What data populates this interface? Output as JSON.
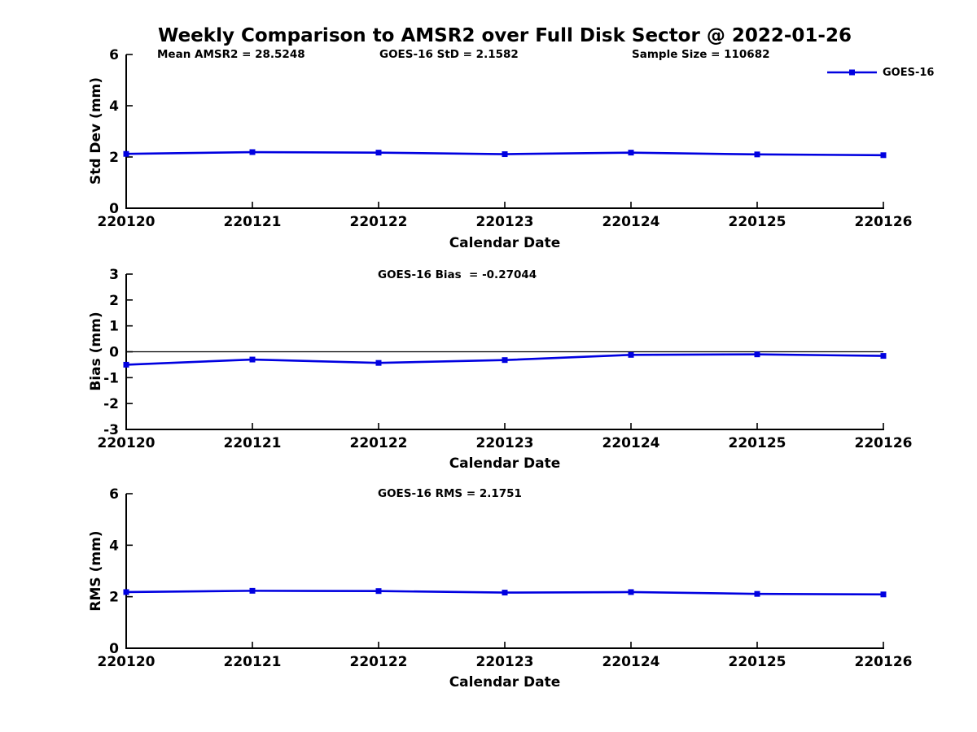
{
  "title": "Weekly Comparison to AMSR2 over Full Disk Sector @ 2022-01-26",
  "legend": {
    "label": "GOES-16",
    "position": "top-right"
  },
  "colors": {
    "line": "#0000e0",
    "axis": "#000000",
    "background": "#ffffff"
  },
  "chart_data": [
    {
      "type": "line",
      "panel": "std-dev",
      "annotations": [
        "Mean AMSR2 = 28.5248",
        "GOES-16 StD = 2.1582",
        "Sample Size = 110682"
      ],
      "ylabel": "Std Dev (mm)",
      "xlabel": "Calendar Date",
      "x": [
        "220120",
        "220121",
        "220122",
        "220123",
        "220124",
        "220125",
        "220126"
      ],
      "series": [
        {
          "name": "GOES-16",
          "values": [
            2.12,
            2.19,
            2.17,
            2.11,
            2.17,
            2.1,
            2.07
          ]
        }
      ],
      "ylim": [
        0,
        6
      ],
      "yticks": [
        0,
        2,
        4,
        6
      ],
      "zero_line": false,
      "grid": false
    },
    {
      "type": "line",
      "panel": "bias",
      "annotations": [
        "GOES-16 Bias  = -0.27044"
      ],
      "ylabel": "Bias (mm)",
      "xlabel": "Calendar Date",
      "x": [
        "220120",
        "220121",
        "220122",
        "220123",
        "220124",
        "220125",
        "220126"
      ],
      "series": [
        {
          "name": "GOES-16",
          "values": [
            -0.5,
            -0.3,
            -0.43,
            -0.32,
            -0.12,
            -0.1,
            -0.16
          ]
        }
      ],
      "ylim": [
        -3,
        3
      ],
      "yticks": [
        3,
        2,
        1,
        0,
        -1,
        -2,
        -3
      ],
      "zero_line": true,
      "grid": false
    },
    {
      "type": "line",
      "panel": "rms",
      "annotations": [
        "GOES-16 RMS = 2.1751"
      ],
      "ylabel": "RMS (mm)",
      "xlabel": "Calendar Date",
      "x": [
        "220120",
        "220121",
        "220122",
        "220123",
        "220124",
        "220125",
        "220126"
      ],
      "series": [
        {
          "name": "GOES-16",
          "values": [
            2.18,
            2.23,
            2.22,
            2.16,
            2.18,
            2.11,
            2.09
          ]
        }
      ],
      "ylim": [
        0,
        6
      ],
      "yticks": [
        0,
        2,
        4,
        6
      ],
      "zero_line": false,
      "grid": false
    }
  ]
}
